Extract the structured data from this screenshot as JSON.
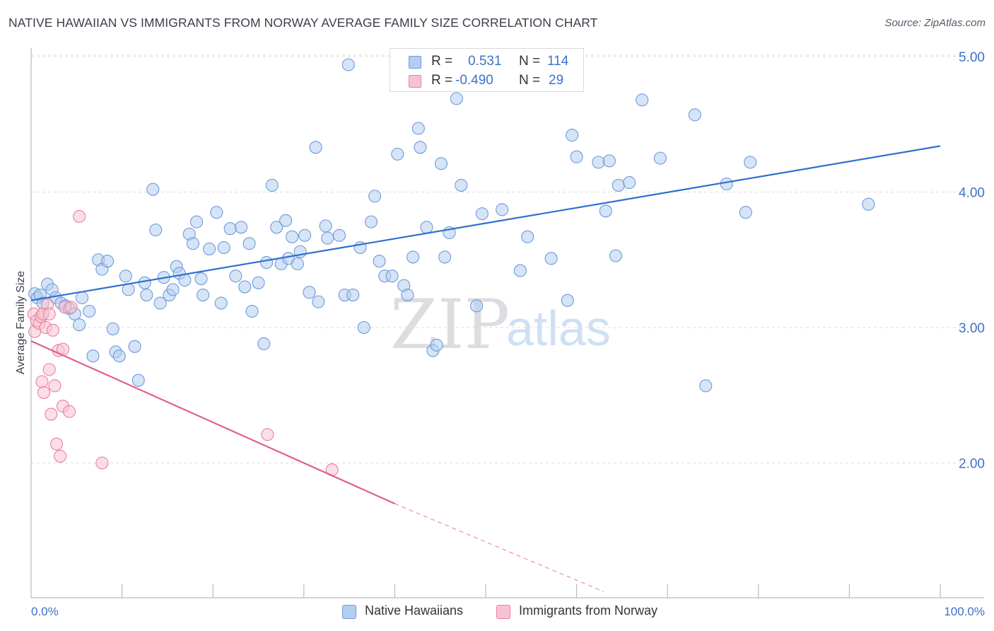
{
  "title": "NATIVE HAWAIIAN VS IMMIGRANTS FROM NORWAY AVERAGE FAMILY SIZE CORRELATION CHART",
  "source": "Source: ZipAtlas.com",
  "watermark": {
    "zip": "ZIP",
    "atlas": "atlas"
  },
  "stats": [
    {
      "r_label": "R =",
      "r_value": "0.531",
      "n_label": "N =",
      "n_value": "114",
      "color": "#b5cdf0",
      "border": "#6f9ad8"
    },
    {
      "r_label": "R =",
      "r_value": "-0.490",
      "n_label": "N =",
      "n_value": "29",
      "color": "#f7c3d2",
      "border": "#e8819f"
    }
  ],
  "legend": [
    {
      "label": "Native Hawaiians",
      "color": "#b5cdf0",
      "border": "#6f9ad8"
    },
    {
      "label": "Immigrants from Norway",
      "color": "#f7c3d2",
      "border": "#e8819f"
    }
  ],
  "chart_data": {
    "type": "scatter",
    "title": "NATIVE HAWAIIAN VS IMMIGRANTS FROM NORWAY AVERAGE FAMILY SIZE CORRELATION CHART",
    "xlabel": "",
    "ylabel": "Average Family Size",
    "x_tick_labels": [
      "0.0%",
      "100.0%"
    ],
    "y_tick_labels": [
      "2.00",
      "3.00",
      "4.00",
      "5.00"
    ],
    "y_ticks": [
      2.0,
      3.0,
      4.0,
      5.0
    ],
    "xlim": [
      0,
      100
    ],
    "ylim": [
      1.05,
      5.1
    ],
    "grid": true,
    "legend_position": "bottom-center",
    "series": [
      {
        "name": "Native Hawaiians",
        "color": "#6f9ad8",
        "fill": "#b5cdf0",
        "trend": {
          "x0": 0,
          "y0": 3.2,
          "x1": 100,
          "y1": 4.34,
          "color": "#2f6fd0"
        },
        "points": [
          [
            0.4,
            3.25
          ],
          [
            0.7,
            3.22
          ],
          [
            1.0,
            3.24
          ],
          [
            1.3,
            3.18
          ],
          [
            1.8,
            3.32
          ],
          [
            2.3,
            3.28
          ],
          [
            2.7,
            3.22
          ],
          [
            3.3,
            3.18
          ],
          [
            3.8,
            3.16
          ],
          [
            4.2,
            3.14
          ],
          [
            4.8,
            3.1
          ],
          [
            5.3,
            3.02
          ],
          [
            5.6,
            3.22
          ],
          [
            6.4,
            3.12
          ],
          [
            6.8,
            2.79
          ],
          [
            7.4,
            3.5
          ],
          [
            7.8,
            3.43
          ],
          [
            8.4,
            3.49
          ],
          [
            9.0,
            2.99
          ],
          [
            9.3,
            2.82
          ],
          [
            9.7,
            2.79
          ],
          [
            10.4,
            3.38
          ],
          [
            10.7,
            3.28
          ],
          [
            11.4,
            2.86
          ],
          [
            11.8,
            2.61
          ],
          [
            12.5,
            3.33
          ],
          [
            12.7,
            3.24
          ],
          [
            13.4,
            4.02
          ],
          [
            13.7,
            3.72
          ],
          [
            14.2,
            3.18
          ],
          [
            14.6,
            3.37
          ],
          [
            15.2,
            3.24
          ],
          [
            15.6,
            3.28
          ],
          [
            16.0,
            3.45
          ],
          [
            16.3,
            3.4
          ],
          [
            16.9,
            3.35
          ],
          [
            17.4,
            3.69
          ],
          [
            17.8,
            3.62
          ],
          [
            18.2,
            3.78
          ],
          [
            18.7,
            3.36
          ],
          [
            18.9,
            3.24
          ],
          [
            19.6,
            3.58
          ],
          [
            20.4,
            3.85
          ],
          [
            20.9,
            3.18
          ],
          [
            21.2,
            3.59
          ],
          [
            21.9,
            3.73
          ],
          [
            22.5,
            3.38
          ],
          [
            23.1,
            3.74
          ],
          [
            23.5,
            3.3
          ],
          [
            24.0,
            3.62
          ],
          [
            24.3,
            3.12
          ],
          [
            25.0,
            3.33
          ],
          [
            25.6,
            2.88
          ],
          [
            25.9,
            3.48
          ],
          [
            26.5,
            4.05
          ],
          [
            27.0,
            3.74
          ],
          [
            27.5,
            3.47
          ],
          [
            28.0,
            3.79
          ],
          [
            28.3,
            3.51
          ],
          [
            28.7,
            3.67
          ],
          [
            29.3,
            3.47
          ],
          [
            29.6,
            3.56
          ],
          [
            30.1,
            3.68
          ],
          [
            30.6,
            3.26
          ],
          [
            31.3,
            4.33
          ],
          [
            31.6,
            3.19
          ],
          [
            32.4,
            3.75
          ],
          [
            32.6,
            3.66
          ],
          [
            33.9,
            3.68
          ],
          [
            34.5,
            3.24
          ],
          [
            34.9,
            4.94
          ],
          [
            35.4,
            3.24
          ],
          [
            36.2,
            3.59
          ],
          [
            36.6,
            3.0
          ],
          [
            37.4,
            3.78
          ],
          [
            37.8,
            3.97
          ],
          [
            38.3,
            3.49
          ],
          [
            38.9,
            3.38
          ],
          [
            39.7,
            3.38
          ],
          [
            40.3,
            4.28
          ],
          [
            41.0,
            3.31
          ],
          [
            41.4,
            3.24
          ],
          [
            42.0,
            3.52
          ],
          [
            42.6,
            4.47
          ],
          [
            42.8,
            4.33
          ],
          [
            43.5,
            3.74
          ],
          [
            44.2,
            2.83
          ],
          [
            44.6,
            2.87
          ],
          [
            45.1,
            4.21
          ],
          [
            45.5,
            3.52
          ],
          [
            46.0,
            3.7
          ],
          [
            46.8,
            4.69
          ],
          [
            47.3,
            4.05
          ],
          [
            49.0,
            3.16
          ],
          [
            49.6,
            3.84
          ],
          [
            51.8,
            3.87
          ],
          [
            53.8,
            3.42
          ],
          [
            54.6,
            3.67
          ],
          [
            57.2,
            3.51
          ],
          [
            59.0,
            3.2
          ],
          [
            59.5,
            4.42
          ],
          [
            60.0,
            4.26
          ],
          [
            62.4,
            4.22
          ],
          [
            63.2,
            3.86
          ],
          [
            63.6,
            4.23
          ],
          [
            64.3,
            3.53
          ],
          [
            64.6,
            4.05
          ],
          [
            65.8,
            4.07
          ],
          [
            67.2,
            4.68
          ],
          [
            69.2,
            4.25
          ],
          [
            73.0,
            4.57
          ],
          [
            74.2,
            2.57
          ],
          [
            76.5,
            4.06
          ],
          [
            78.6,
            3.85
          ],
          [
            79.1,
            4.22
          ],
          [
            92.1,
            3.91
          ]
        ]
      },
      {
        "name": "Immigrants from Norway",
        "color": "#e8819f",
        "fill": "#f7c3d2",
        "trend": {
          "x0": 0,
          "y0": 2.9,
          "x1": 40,
          "y1": 1.7,
          "dash_x1": 63,
          "dash_y1": 1.05,
          "color": "#e0608a"
        },
        "points": [
          [
            0.3,
            3.1
          ],
          [
            0.4,
            2.97
          ],
          [
            0.6,
            3.05
          ],
          [
            0.9,
            3.03
          ],
          [
            1.1,
            3.08
          ],
          [
            1.2,
            2.6
          ],
          [
            1.3,
            3.1
          ],
          [
            1.4,
            2.52
          ],
          [
            1.6,
            3.0
          ],
          [
            1.8,
            3.17
          ],
          [
            2.0,
            3.1
          ],
          [
            2.0,
            2.69
          ],
          [
            2.2,
            2.36
          ],
          [
            2.4,
            2.98
          ],
          [
            2.6,
            2.57
          ],
          [
            2.8,
            2.14
          ],
          [
            3.0,
            2.83
          ],
          [
            3.2,
            2.05
          ],
          [
            3.5,
            2.42
          ],
          [
            3.5,
            2.84
          ],
          [
            3.7,
            3.15
          ],
          [
            4.2,
            2.38
          ],
          [
            4.4,
            3.15
          ],
          [
            5.3,
            3.82
          ],
          [
            7.8,
            2.0
          ],
          [
            26.0,
            2.21
          ],
          [
            33.1,
            1.95
          ]
        ]
      }
    ]
  }
}
